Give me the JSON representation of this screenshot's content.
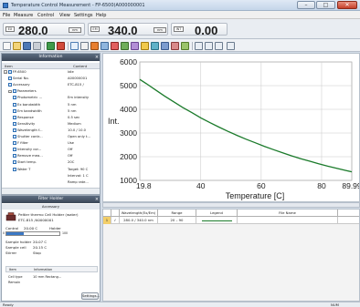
{
  "window": {
    "title": "Temperature Control Measurement - FP-6500(A000000001",
    "minimize": "–",
    "maximize": "□",
    "close": "✕"
  },
  "menu": [
    "File",
    "Measure",
    "Control",
    "View",
    "Settings",
    "Help"
  ],
  "readout": {
    "wl_tag": "EX",
    "wl_value": "280.0",
    "wl_unit": "nm",
    "em_tag": "EM",
    "em_value": "340.0",
    "em_unit": "nm",
    "int_tag": "INT",
    "int_value": "0.00"
  },
  "toolbar": {
    "icons": [
      "new-icon",
      "open-icon",
      "save-icon",
      "print-icon",
      "measure-icon",
      "stop-icon",
      "graph-icon",
      "zoom-icon",
      "peak-icon",
      "settings-icon",
      "temperature-icon",
      "data-icon"
    ]
  },
  "info_panel": {
    "title": "Information",
    "close": "×",
    "col_item": "Item",
    "col_content": "Content",
    "rows": [
      {
        "item": "FP-6500",
        "content": "Idle",
        "level": 0,
        "exp": "−"
      },
      {
        "item": "Serial No.",
        "content": "A00000001",
        "level": 1,
        "exp": ""
      },
      {
        "item": "Accessory",
        "content": "ETC-815 /",
        "level": 1,
        "exp": ""
      },
      {
        "item": "Parameters",
        "content": "",
        "level": 1,
        "exp": "−"
      },
      {
        "item": "Photometric ...",
        "content": "Em intensity",
        "level": 2,
        "exp": ""
      },
      {
        "item": "Ex bandwidth",
        "content": "5 nm",
        "level": 2,
        "exp": ""
      },
      {
        "item": "Em bandwidth",
        "content": "5 nm",
        "level": 2,
        "exp": ""
      },
      {
        "item": "Response",
        "content": "0.5 sec",
        "level": 2,
        "exp": ""
      },
      {
        "item": "Sensitivity",
        "content": "Medium",
        "level": 2,
        "exp": ""
      },
      {
        "item": "Wavelength f...",
        "content": "10.0 / 10.0",
        "level": 2,
        "exp": ""
      },
      {
        "item": "Shutter contr...",
        "content": "Open only t...",
        "level": 2,
        "exp": ""
      },
      {
        "item": "F filter",
        "content": "Use",
        "level": 2,
        "exp": ""
      },
      {
        "item": "Intensity cor...",
        "content": "Off",
        "level": 2,
        "exp": ""
      },
      {
        "item": "Remove mea...",
        "content": "Off",
        "level": 2,
        "exp": ""
      },
      {
        "item": "Start temp.",
        "content": "20C",
        "level": 2,
        "exp": ""
      },
      {
        "item": "Water T",
        "content": "Target: 90 C",
        "level": 2,
        "exp": ""
      },
      {
        "item": "",
        "content": "Interval: 1 C",
        "level": 2,
        "exp": ""
      },
      {
        "item": "",
        "content": "Ramp rate...",
        "level": 2,
        "exp": ""
      }
    ]
  },
  "filter_panel": {
    "title": "Filter Holder",
    "close": "×",
    "accessory_label": "Accessory",
    "holder_name": "Peltier thermo Cell Holder (water)",
    "holder_model": "ETC-815 /A0000001",
    "control_label": "Control",
    "control_value": "20.00 C",
    "holder_label": "Holder",
    "scale_left": "0",
    "scale_right": "100",
    "sample_holder_label": "Sample holder",
    "sample_holder_value": "20.07 C",
    "sample_cell_label": "Sample cell",
    "sample_cell_value": "20.15 C",
    "stirrer_label": "Stirrer",
    "stirrer_value": "Stop",
    "table_item": "Item",
    "table_info": "Information",
    "table_rows": [
      {
        "item": "Cell type",
        "info": "10 mm Rectang..."
      },
      {
        "item": "Remain",
        "info": ""
      }
    ],
    "settings_button": "Settings..."
  },
  "chart_data": {
    "type": "line",
    "title": "",
    "xlabel": "Temperature [C]",
    "ylabel": "Int.",
    "xlim": [
      19.8,
      89.99
    ],
    "ylim": [
      1000,
      6000
    ],
    "x_ticks": [
      "19.8",
      "40",
      "60",
      "80",
      "89.99"
    ],
    "x_tick_values": [
      19.8,
      40,
      60,
      80,
      89.99
    ],
    "y_ticks": [
      "1000",
      "2000",
      "3000",
      "4000",
      "5000",
      "6000"
    ],
    "y_tick_values": [
      1000,
      2000,
      3000,
      4000,
      5000,
      6000
    ],
    "grid": true,
    "series": [
      {
        "color": "#1a7a2a",
        "x": [
          19.8,
          22,
          25,
          28,
          31,
          34,
          37,
          40,
          43,
          46,
          49,
          52,
          55,
          58,
          61,
          64,
          67,
          70,
          73,
          76,
          79,
          82,
          85,
          88,
          89.99
        ],
        "y": [
          5260,
          5080,
          4820,
          4560,
          4320,
          4080,
          3860,
          3640,
          3440,
          3250,
          3070,
          2900,
          2740,
          2590,
          2440,
          2300,
          2170,
          2040,
          1920,
          1810,
          1700,
          1600,
          1510,
          1420,
          1360
        ]
      }
    ]
  },
  "list": {
    "headers": [
      "",
      "",
      "Wavelength(Ex/Em)",
      "Range",
      "Legend",
      "File Name"
    ],
    "rows": [
      {
        "index": "1",
        "check": "✓",
        "wavelength": "280.0 / 340.0 nm",
        "range": "20 – 90",
        "legend_color": "#1a7a2a",
        "file": ""
      }
    ]
  },
  "statusbar": {
    "left": "Ready",
    "right": "NUM"
  }
}
